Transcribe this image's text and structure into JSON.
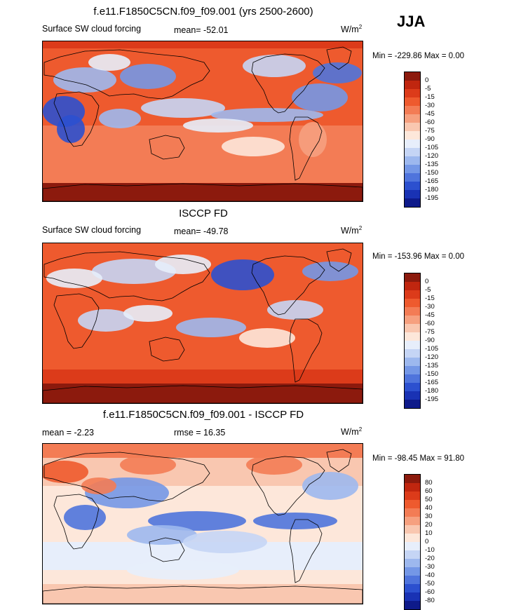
{
  "season_label": "JJA",
  "chart_data": [
    {
      "type": "heatmap",
      "title": "f.e11.F1850C5CN.f09_f09.001 (yrs 2500-2600)",
      "left_label": "Surface SW cloud forcing",
      "mean_label": "mean= -52.01",
      "units": "W/m",
      "units_exp": "2",
      "minmax": "Min = -229.86 Max =   0.00",
      "levels": [
        "0",
        "-5",
        "-15",
        "-30",
        "-45",
        "-60",
        "-75",
        "-90",
        "-105",
        "-120",
        "-135",
        "-150",
        "-165",
        "-180",
        "-195"
      ],
      "colors": [
        "#8c1a0d",
        "#c0260f",
        "#dc3b1a",
        "#ee5a2e",
        "#f37c55",
        "#f6a07f",
        "#f9c7b0",
        "#fde7da",
        "#e7eefb",
        "#c5d5f5",
        "#9db8ee",
        "#7497e6",
        "#4f74dc",
        "#2c50cf",
        "#1932b4",
        "#0e1a8a"
      ]
    },
    {
      "type": "heatmap",
      "title": "ISCCP FD",
      "left_label": "Surface SW cloud forcing",
      "mean_label": "mean= -49.78",
      "units": "W/m",
      "units_exp": "2",
      "minmax": "Min = -153.96 Max =   0.00",
      "levels": [
        "0",
        "-5",
        "-15",
        "-30",
        "-45",
        "-60",
        "-75",
        "-90",
        "-105",
        "-120",
        "-135",
        "-150",
        "-165",
        "-180",
        "-195"
      ],
      "colors": [
        "#8c1a0d",
        "#c0260f",
        "#dc3b1a",
        "#ee5a2e",
        "#f37c55",
        "#f6a07f",
        "#f9c7b0",
        "#fde7da",
        "#e7eefb",
        "#c5d5f5",
        "#9db8ee",
        "#7497e6",
        "#4f74dc",
        "#2c50cf",
        "#1932b4",
        "#0e1a8a"
      ]
    },
    {
      "type": "heatmap",
      "title": "f.e11.F1850C5CN.f09_f09.001 - ISCCP FD",
      "left_label": "mean =  -2.23",
      "mean_label": "rmse =  16.35",
      "units": "W/m",
      "units_exp": "2",
      "minmax": "Min = -98.45 Max =  91.80",
      "levels": [
        "80",
        "60",
        "50",
        "40",
        "30",
        "20",
        "10",
        "0",
        "-10",
        "-20",
        "-30",
        "-40",
        "-50",
        "-60",
        "-80"
      ],
      "colors": [
        "#8c1a0d",
        "#c0260f",
        "#dc3b1a",
        "#ee5a2e",
        "#f37c55",
        "#f6a07f",
        "#f9c7b0",
        "#fde7da",
        "#e7eefb",
        "#c5d5f5",
        "#9db8ee",
        "#7497e6",
        "#4f74dc",
        "#2c50cf",
        "#1932b4",
        "#0e1a8a"
      ]
    }
  ]
}
